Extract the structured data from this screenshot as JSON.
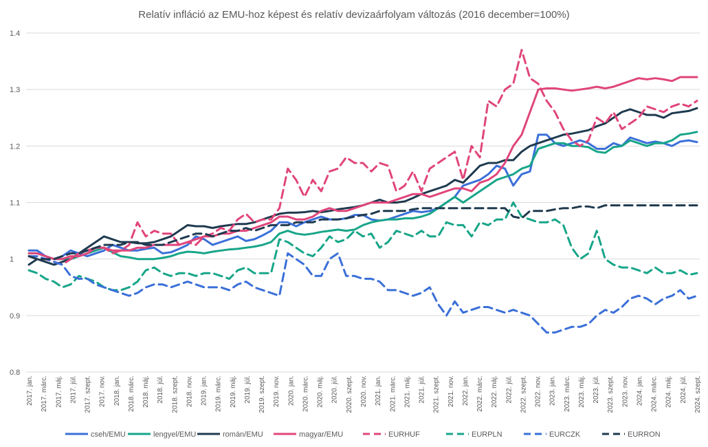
{
  "chart_data": {
    "type": "line",
    "title": "Relatív infláció az EMU-hoz képest és relatív devizaárfolyam változás (2016 december=100%)",
    "ylim": [
      0.8,
      1.4
    ],
    "yticks": [
      "0.8",
      "0.9",
      "1",
      "1.1",
      "1.2",
      "1.3",
      "1.4"
    ],
    "ytick_values": [
      0.8,
      0.9,
      1.0,
      1.1,
      1.2,
      1.3,
      1.4
    ],
    "grid": true,
    "legend_position": "bottom",
    "x_tick_labels": [
      "2017. jan.",
      "2017. márc.",
      "2017. máj.",
      "2017. júl.",
      "2017. szept.",
      "2017. nov.",
      "2018. jan.",
      "2018. márc.",
      "2018. máj.",
      "2018. júl.",
      "2018. szept.",
      "2018. nov.",
      "2019. jan.",
      "2019. márc.",
      "2019. máj.",
      "2019. júl.",
      "2019. szept.",
      "2019. nov.",
      "2020. jan.",
      "2020. márc.",
      "2020. máj.",
      "2020. júl.",
      "2020. szept.",
      "2020. nov.",
      "2021. jan.",
      "2021. márc.",
      "2021. máj.",
      "2021. júl.",
      "2021. szept.",
      "2021. nov.",
      "2022. jan.",
      "2022. márc.",
      "2022. máj.",
      "2022. júl.",
      "2022. szept.",
      "2022. nov.",
      "2023. jan.",
      "2023. márc.",
      "2023. máj.",
      "2023. júl.",
      "2023. szept.",
      "2023. nov.",
      "2024. jan.",
      "2024. márc.",
      "2024. máj.",
      "2024. júl.",
      "2024. szept."
    ],
    "series": [
      {
        "name": "cseh/EMU",
        "color": "#3a6fd8",
        "dash": false,
        "values": [
          1.015,
          1.015,
          1.005,
          1.0,
          1.005,
          1.015,
          1.01,
          1.005,
          1.01,
          1.015,
          1.025,
          1.02,
          1.015,
          1.015,
          1.018,
          1.02,
          1.01,
          1.012,
          1.018,
          1.025,
          1.04,
          1.035,
          1.025,
          1.03,
          1.035,
          1.04,
          1.032,
          1.035,
          1.042,
          1.05,
          1.065,
          1.065,
          1.058,
          1.065,
          1.07,
          1.075,
          1.07,
          1.07,
          1.072,
          1.078,
          1.078,
          1.07,
          1.068,
          1.07,
          1.075,
          1.08,
          1.085,
          1.083,
          1.085,
          1.09,
          1.1,
          1.11,
          1.13,
          1.135,
          1.14,
          1.15,
          1.165,
          1.16,
          1.13,
          1.15,
          1.155,
          1.22,
          1.22,
          1.205,
          1.2,
          1.205,
          1.21,
          1.205,
          1.195,
          1.195,
          1.205,
          1.2,
          1.215,
          1.21,
          1.205,
          1.208,
          1.205,
          1.2,
          1.208,
          1.21,
          1.207
        ]
      },
      {
        "name": "lengyel/EMU",
        "color": "#17a589",
        "dash": false,
        "values": [
          1.01,
          1.01,
          1.005,
          1.0,
          1.0,
          1.0,
          1.005,
          1.01,
          1.015,
          1.02,
          1.012,
          1.005,
          1.003,
          1.0,
          1.0,
          1.0,
          1.002,
          1.005,
          1.01,
          1.013,
          1.012,
          1.01,
          1.013,
          1.015,
          1.017,
          1.018,
          1.02,
          1.022,
          1.025,
          1.03,
          1.045,
          1.05,
          1.045,
          1.043,
          1.045,
          1.048,
          1.05,
          1.052,
          1.05,
          1.052,
          1.06,
          1.065,
          1.068,
          1.07,
          1.07,
          1.072,
          1.072,
          1.075,
          1.08,
          1.09,
          1.1,
          1.11,
          1.1,
          1.11,
          1.12,
          1.13,
          1.14,
          1.145,
          1.15,
          1.16,
          1.165,
          1.195,
          1.2,
          1.205,
          1.205,
          1.2,
          1.2,
          1.198,
          1.19,
          1.188,
          1.198,
          1.2,
          1.21,
          1.205,
          1.2,
          1.205,
          1.205,
          1.21,
          1.22,
          1.222,
          1.225
        ]
      },
      {
        "name": "román/EMU",
        "color": "#1f3a4f",
        "dash": false,
        "values": [
          0.99,
          1.0,
          0.995,
          0.99,
          0.995,
          1.0,
          1.01,
          1.02,
          1.03,
          1.04,
          1.035,
          1.03,
          1.03,
          1.028,
          1.028,
          1.03,
          1.035,
          1.04,
          1.05,
          1.06,
          1.058,
          1.058,
          1.055,
          1.058,
          1.06,
          1.062,
          1.062,
          1.065,
          1.07,
          1.075,
          1.08,
          1.082,
          1.082,
          1.083,
          1.085,
          1.083,
          1.085,
          1.088,
          1.09,
          1.092,
          1.095,
          1.1,
          1.105,
          1.1,
          1.1,
          1.102,
          1.108,
          1.115,
          1.12,
          1.125,
          1.13,
          1.14,
          1.135,
          1.15,
          1.165,
          1.17,
          1.17,
          1.175,
          1.175,
          1.19,
          1.2,
          1.205,
          1.21,
          1.215,
          1.22,
          1.222,
          1.225,
          1.228,
          1.235,
          1.24,
          1.25,
          1.26,
          1.265,
          1.26,
          1.255,
          1.255,
          1.25,
          1.258,
          1.26,
          1.262,
          1.267
        ]
      },
      {
        "name": "magyar/EMU",
        "color": "#e0457b",
        "dash": false,
        "values": [
          1.01,
          1.01,
          1.005,
          1.0,
          1.0,
          1.005,
          1.005,
          1.01,
          1.02,
          1.02,
          1.015,
          1.015,
          1.015,
          1.02,
          1.02,
          1.025,
          1.025,
          1.025,
          1.025,
          1.03,
          1.035,
          1.04,
          1.04,
          1.045,
          1.045,
          1.05,
          1.05,
          1.055,
          1.06,
          1.065,
          1.075,
          1.075,
          1.07,
          1.07,
          1.075,
          1.085,
          1.09,
          1.085,
          1.085,
          1.09,
          1.095,
          1.1,
          1.1,
          1.1,
          1.105,
          1.11,
          1.115,
          1.115,
          1.11,
          1.115,
          1.12,
          1.125,
          1.125,
          1.12,
          1.135,
          1.14,
          1.15,
          1.17,
          1.2,
          1.22,
          1.26,
          1.3,
          1.302,
          1.302,
          1.3,
          1.298,
          1.3,
          1.302,
          1.305,
          1.302,
          1.305,
          1.31,
          1.315,
          1.32,
          1.318,
          1.32,
          1.318,
          1.315,
          1.322,
          1.322,
          1.322
        ]
      },
      {
        "name": "EURHUF",
        "color": "#e0457b",
        "dash": true,
        "values": [
          1.005,
          1.0,
          1.0,
          0.995,
          0.99,
          1.0,
          1.01,
          1.015,
          1.02,
          1.02,
          1.01,
          1.015,
          1.025,
          1.065,
          1.04,
          1.05,
          1.045,
          1.045,
          1.025,
          1.03,
          1.025,
          1.04,
          1.045,
          1.055,
          1.05,
          1.07,
          1.08,
          1.065,
          1.07,
          1.07,
          1.09,
          1.16,
          1.14,
          1.11,
          1.14,
          1.12,
          1.155,
          1.16,
          1.18,
          1.17,
          1.17,
          1.155,
          1.17,
          1.165,
          1.12,
          1.13,
          1.155,
          1.12,
          1.16,
          1.17,
          1.18,
          1.19,
          1.14,
          1.2,
          1.18,
          1.28,
          1.27,
          1.3,
          1.31,
          1.37,
          1.32,
          1.31,
          1.28,
          1.26,
          1.23,
          1.21,
          1.2,
          1.21,
          1.25,
          1.24,
          1.26,
          1.23,
          1.24,
          1.25,
          1.27,
          1.265,
          1.26,
          1.27,
          1.275,
          1.27,
          1.28
        ]
      },
      {
        "name": "EURPLN",
        "color": "#17a589",
        "dash": true,
        "values": [
          0.98,
          0.975,
          0.965,
          0.96,
          0.95,
          0.955,
          0.97,
          0.965,
          0.96,
          0.95,
          0.945,
          0.945,
          0.95,
          0.96,
          0.98,
          0.985,
          0.975,
          0.97,
          0.975,
          0.975,
          0.97,
          0.975,
          0.975,
          0.97,
          0.965,
          0.98,
          0.985,
          0.975,
          0.975,
          0.975,
          1.035,
          1.03,
          1.02,
          1.01,
          1.005,
          1.02,
          1.04,
          1.03,
          1.035,
          1.05,
          1.04,
          1.045,
          1.02,
          1.03,
          1.05,
          1.045,
          1.04,
          1.05,
          1.04,
          1.04,
          1.065,
          1.06,
          1.06,
          1.04,
          1.065,
          1.06,
          1.07,
          1.07,
          1.1,
          1.075,
          1.07,
          1.065,
          1.065,
          1.07,
          1.06,
          1.02,
          1.0,
          1.01,
          1.05,
          1.0,
          0.99,
          0.985,
          0.985,
          0.98,
          0.975,
          0.985,
          0.975,
          0.975,
          0.98,
          0.972,
          0.975
        ]
      },
      {
        "name": "EURCZK",
        "color": "#3a6fd8",
        "dash": true,
        "values": [
          1.005,
          1.005,
          1.0,
          0.995,
          0.99,
          0.97,
          0.965,
          0.965,
          0.955,
          0.95,
          0.945,
          0.94,
          0.935,
          0.94,
          0.95,
          0.955,
          0.955,
          0.95,
          0.955,
          0.96,
          0.955,
          0.95,
          0.95,
          0.95,
          0.945,
          0.955,
          0.96,
          0.95,
          0.945,
          0.94,
          0.935,
          1.01,
          1.0,
          0.99,
          0.97,
          0.97,
          1.0,
          1.01,
          0.97,
          0.97,
          0.965,
          0.965,
          0.96,
          0.945,
          0.945,
          0.94,
          0.935,
          0.94,
          0.95,
          0.92,
          0.9,
          0.925,
          0.905,
          0.91,
          0.915,
          0.915,
          0.91,
          0.905,
          0.91,
          0.905,
          0.9,
          0.885,
          0.87,
          0.87,
          0.875,
          0.88,
          0.88,
          0.885,
          0.9,
          0.91,
          0.905,
          0.915,
          0.93,
          0.935,
          0.93,
          0.92,
          0.93,
          0.935,
          0.945,
          0.93,
          0.935
        ]
      },
      {
        "name": "EURRON",
        "color": "#1f3a4f",
        "dash": true,
        "values": [
          1.005,
          1.0,
          1.0,
          1.0,
          1.005,
          1.01,
          1.01,
          1.015,
          1.02,
          1.025,
          1.025,
          1.025,
          1.03,
          1.03,
          1.025,
          1.025,
          1.025,
          1.03,
          1.035,
          1.04,
          1.045,
          1.045,
          1.04,
          1.045,
          1.05,
          1.05,
          1.055,
          1.05,
          1.055,
          1.06,
          1.06,
          1.06,
          1.065,
          1.065,
          1.065,
          1.07,
          1.07,
          1.07,
          1.072,
          1.075,
          1.078,
          1.08,
          1.085,
          1.085,
          1.085,
          1.085,
          1.088,
          1.09,
          1.09,
          1.09,
          1.09,
          1.09,
          1.09,
          1.09,
          1.09,
          1.09,
          1.09,
          1.09,
          1.075,
          1.072,
          1.085,
          1.085,
          1.085,
          1.088,
          1.09,
          1.09,
          1.093,
          1.093,
          1.09,
          1.095,
          1.095,
          1.095,
          1.095,
          1.095,
          1.095,
          1.095,
          1.095,
          1.095,
          1.095,
          1.095,
          1.095
        ]
      }
    ]
  }
}
